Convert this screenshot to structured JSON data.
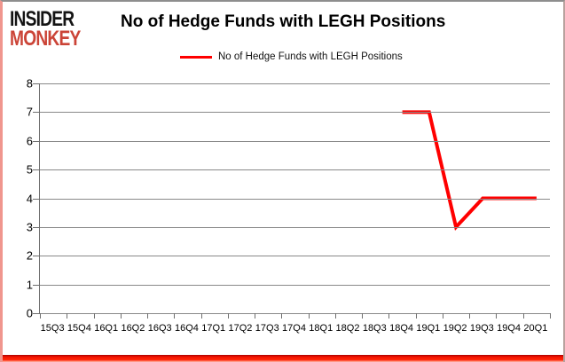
{
  "logo": {
    "line1": "INSIDER",
    "line2": "MONKEY"
  },
  "header": {
    "title": "No of Hedge Funds with LEGH Positions"
  },
  "legend": {
    "label": "No of Hedge Funds with LEGH Positions"
  },
  "colors": {
    "series": "#ff0000",
    "logo_red": "#cb4437",
    "gridline": "#898989",
    "axis": "#6e6e6e",
    "frame_bottom": "#f51500"
  },
  "chart_data": {
    "type": "line",
    "title": "No of Hedge Funds with LEGH Positions",
    "categories": [
      "15Q3",
      "15Q4",
      "16Q1",
      "16Q2",
      "16Q3",
      "16Q4",
      "17Q1",
      "17Q2",
      "17Q3",
      "17Q4",
      "18Q1",
      "18Q2",
      "18Q3",
      "18Q4",
      "19Q1",
      "19Q2",
      "19Q3",
      "19Q4",
      "20Q1"
    ],
    "series": [
      {
        "name": "No of Hedge Funds with LEGH Positions",
        "values": [
          null,
          null,
          null,
          null,
          null,
          null,
          null,
          null,
          null,
          null,
          null,
          null,
          null,
          7,
          7,
          3,
          4,
          4,
          4
        ]
      }
    ],
    "ylim": [
      0,
      8
    ],
    "yticks": [
      0,
      1,
      2,
      3,
      4,
      5,
      6,
      7,
      8
    ],
    "grid": true,
    "legend_position": "top",
    "xlabel": "",
    "ylabel": ""
  }
}
